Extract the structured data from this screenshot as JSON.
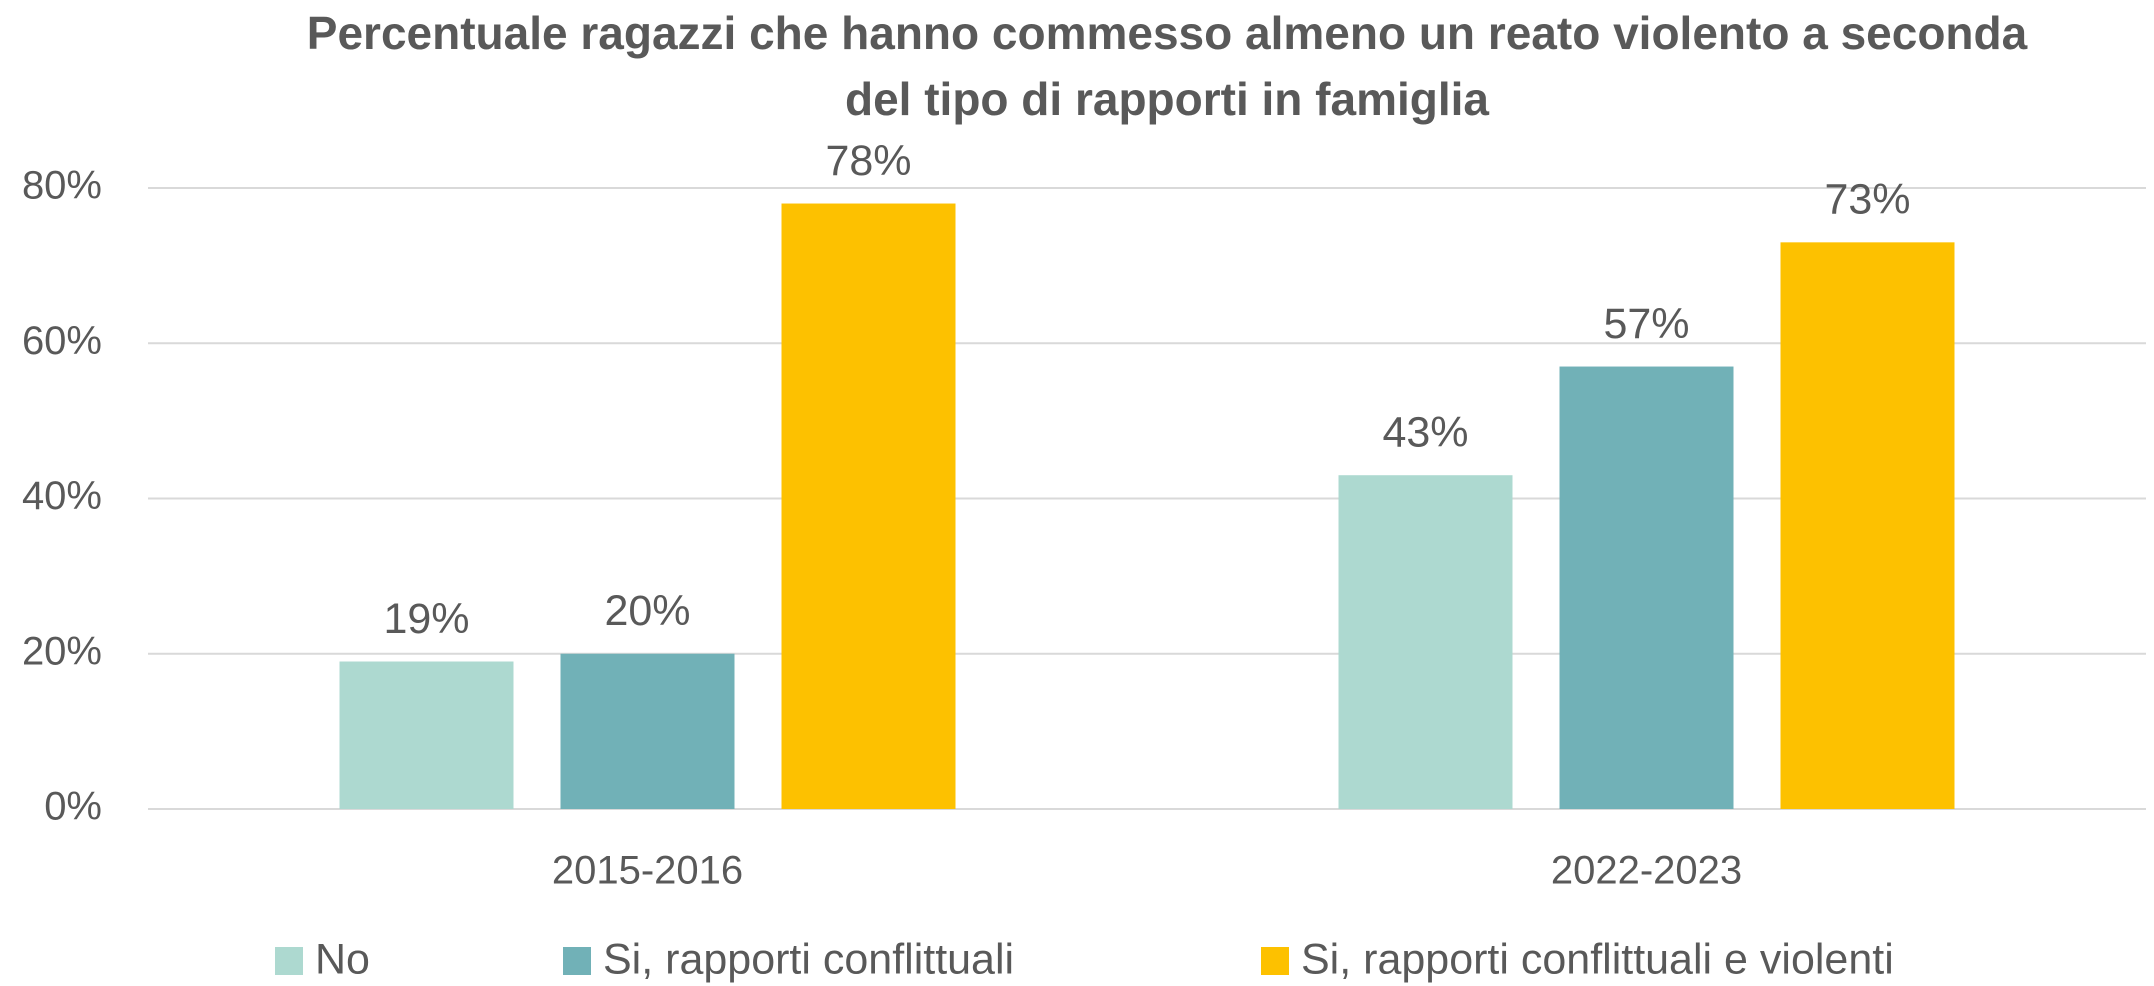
{
  "chart_data": {
    "type": "bar",
    "title": "Percentuale ragazzi che  hanno commesso almeno un reato violento a seconda del tipo di rapporti in famiglia",
    "categories": [
      "2015-2016",
      "2022-2023"
    ],
    "series": [
      {
        "name": "No",
        "color": "#add9d0",
        "values": [
          19,
          43
        ],
        "value_labels": [
          "19%",
          "43%"
        ]
      },
      {
        "name": "Si, rapporti conflittuali",
        "color": "#71b1b7",
        "values": [
          20,
          57
        ],
        "value_labels": [
          "20%",
          "57%"
        ]
      },
      {
        "name": "Si, rapporti conflittuali e violenti",
        "color": "#fdc100",
        "values": [
          78,
          73
        ],
        "value_labels": [
          "78%",
          "73%"
        ]
      }
    ],
    "ylim": [
      0,
      80
    ],
    "yticks": [
      {
        "value": 0,
        "label": "0%"
      },
      {
        "value": 20,
        "label": "20%"
      },
      {
        "value": 40,
        "label": "40%"
      },
      {
        "value": 60,
        "label": "60%"
      },
      {
        "value": 80,
        "label": "80%"
      }
    ],
    "grid": true,
    "legend": "bottom"
  }
}
